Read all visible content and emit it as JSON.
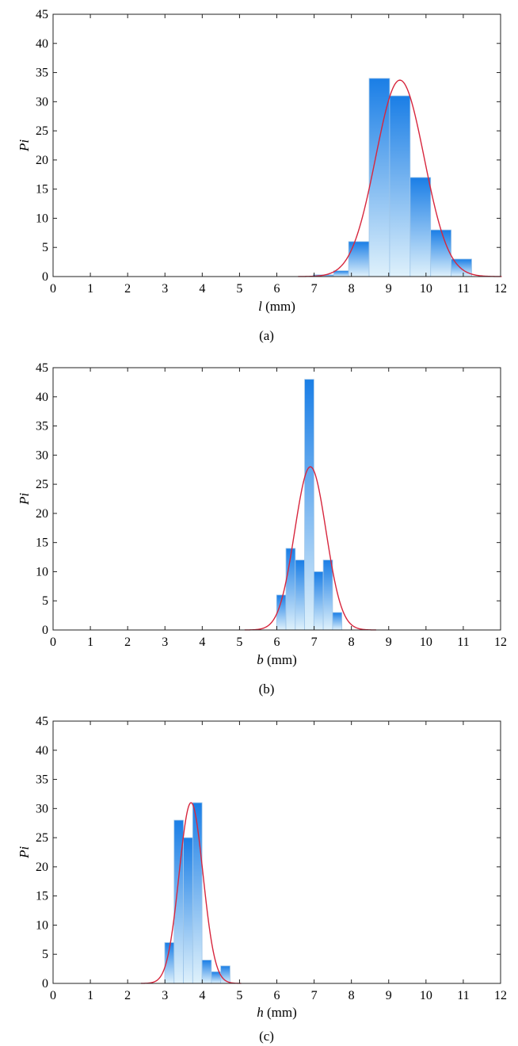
{
  "chart_data": [
    {
      "type": "bar",
      "caption": "(a)",
      "xlabel_var": "l",
      "xlabel_unit": " (mm)",
      "ylabel": "Pi",
      "xlim": [
        0,
        12
      ],
      "ylim": [
        0,
        45
      ],
      "xticks": [
        0,
        1,
        2,
        3,
        4,
        5,
        6,
        7,
        8,
        9,
        10,
        11,
        12
      ],
      "yticks": [
        0,
        5,
        10,
        15,
        20,
        25,
        30,
        35,
        40,
        45
      ],
      "bin_width": 0.55,
      "bars": [
        {
          "x": 7.25,
          "value": 0.3
        },
        {
          "x": 7.8,
          "value": 1
        },
        {
          "x": 8.2,
          "value": 6
        },
        {
          "x": 8.75,
          "value": 34
        },
        {
          "x": 9.3,
          "value": 31
        },
        {
          "x": 9.85,
          "value": 17
        },
        {
          "x": 10.4,
          "value": 8
        },
        {
          "x": 10.95,
          "value": 3
        }
      ],
      "fit_curve": {
        "type": "normal",
        "mean": 9.3,
        "sd": 0.65,
        "peak": 33.7
      },
      "colors": {
        "bar_top": "#1a7ee6",
        "bar_bottom": "#dff1fb",
        "curve": "#d7263d"
      }
    },
    {
      "type": "bar",
      "caption": "(b)",
      "xlabel_var": "b",
      "xlabel_unit": " (mm)",
      "ylabel": "Pi",
      "xlim": [
        0,
        12
      ],
      "ylim": [
        0,
        45
      ],
      "xticks": [
        0,
        1,
        2,
        3,
        4,
        5,
        6,
        7,
        8,
        9,
        10,
        11,
        12
      ],
      "yticks": [
        0,
        5,
        10,
        15,
        20,
        25,
        30,
        35,
        40,
        45
      ],
      "bin_width": 0.25,
      "bars": [
        {
          "x": 6.12,
          "value": 6
        },
        {
          "x": 6.37,
          "value": 14
        },
        {
          "x": 6.62,
          "value": 12
        },
        {
          "x": 6.87,
          "value": 43
        },
        {
          "x": 7.12,
          "value": 10
        },
        {
          "x": 7.37,
          "value": 12
        },
        {
          "x": 7.62,
          "value": 3
        }
      ],
      "fit_curve": {
        "type": "normal",
        "mean": 6.9,
        "sd": 0.42,
        "peak": 28
      },
      "colors": {
        "bar_top": "#1a7ee6",
        "bar_bottom": "#dff1fb",
        "curve": "#d7263d"
      }
    },
    {
      "type": "bar",
      "caption": "(c)",
      "xlabel_var": "h",
      "xlabel_unit": " (mm)",
      "ylabel": "Pi",
      "xlim": [
        0,
        12
      ],
      "ylim": [
        0,
        45
      ],
      "xticks": [
        0,
        1,
        2,
        3,
        4,
        5,
        6,
        7,
        8,
        9,
        10,
        11,
        12
      ],
      "yticks": [
        0,
        5,
        10,
        15,
        20,
        25,
        30,
        35,
        40,
        45
      ],
      "bin_width": 0.25,
      "bars": [
        {
          "x": 3.12,
          "value": 7
        },
        {
          "x": 3.37,
          "value": 28
        },
        {
          "x": 3.62,
          "value": 25
        },
        {
          "x": 3.87,
          "value": 31
        },
        {
          "x": 4.12,
          "value": 4
        },
        {
          "x": 4.37,
          "value": 2
        },
        {
          "x": 4.62,
          "value": 3
        }
      ],
      "fit_curve": {
        "type": "normal",
        "mean": 3.7,
        "sd": 0.32,
        "peak": 31
      },
      "colors": {
        "bar_top": "#1a7ee6",
        "bar_bottom": "#dff1fb",
        "curve": "#d7263d"
      }
    }
  ]
}
